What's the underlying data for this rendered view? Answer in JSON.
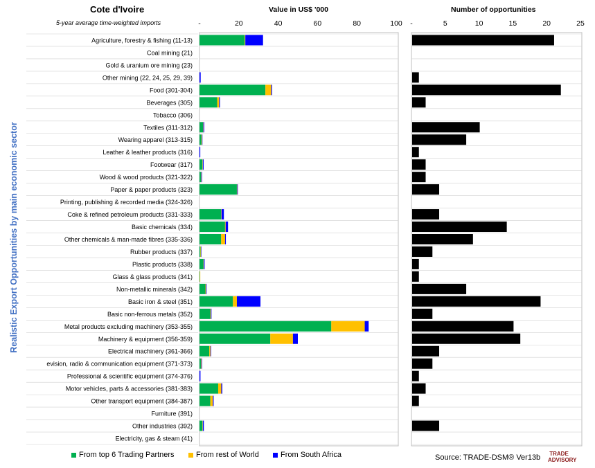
{
  "header": {
    "country": "Cote d'Ivoire",
    "subtitle": "5-year average time-weighted imports",
    "y_axis_title": "Realistic Export Opportunities by main economic sector",
    "left_panel_title": "Value in US$ '000",
    "right_panel_title": "Number of opportunities"
  },
  "legend": {
    "top6": "From top 6 Trading Partners",
    "row": "From rest of World",
    "sa": "From South Africa"
  },
  "footer": {
    "source": "Source: TRADE-DSM®  Ver13b",
    "logo_line1": "TRADE",
    "logo_line2": "ADVISORY"
  },
  "colors": {
    "top6": "#00B050",
    "row": "#FFC000",
    "sa": "#0000FF",
    "count": "#000000",
    "grid": "#BFBFBF"
  },
  "chart_data": [
    {
      "type": "bar",
      "orientation": "horizontal",
      "stacked": true,
      "title": "Value in US$ '000",
      "xlim": [
        0,
        100
      ],
      "x_ticks": [
        "-",
        "20",
        "40",
        "60",
        "80",
        "100"
      ],
      "categories": [
        "Agriculture, forestry & fishing (11-13)",
        "Coal mining (21)",
        "Gold & uranium ore mining (23)",
        "Other mining (22, 24, 25, 29, 39)",
        "Food (301-304)",
        "Beverages (305)",
        "Tobacco (306)",
        "Textiles (311-312)",
        "Wearing apparel (313-315)",
        "Leather & leather products (316)",
        "Footwear (317)",
        "Wood & wood products (321-322)",
        "Paper & paper products (323)",
        "Printing, publishing & recorded media (324-326)",
        "Coke & refined petroleum products (331-333)",
        "Basic chemicals (334)",
        "Other chemicals & man-made fibres (335-336)",
        "Rubber products (337)",
        "Plastic products (338)",
        "Glass & glass products (341)",
        "Non-metallic minerals (342)",
        "Basic iron & steel (351)",
        "Basic non-ferrous metals (352)",
        "Metal products excluding machinery (353-355)",
        "Machinery & equipment (356-359)",
        "Electrical machinery (361-366)",
        "evision, radio & communication equipment (371-373)",
        "Professional & scientific equipment (374-376)",
        "Motor vehicles, parts & accessories (381-383)",
        "Other transport equipment (384-387)",
        "Furniture (391)",
        "Other industries (392)",
        "Electricity, gas & steam (41)"
      ],
      "series": [
        {
          "name": "From top 6 Trading Partners",
          "values": [
            23,
            0,
            0,
            0,
            33.5,
            9,
            0,
            1.8,
            1,
            0,
            1.5,
            0.8,
            19,
            0,
            11,
            13,
            11,
            0.5,
            2,
            0.2,
            3,
            17,
            5.5,
            67,
            36,
            5,
            0.7,
            0,
            9.5,
            5.5,
            0,
            1.5,
            0
          ]
        },
        {
          "name": "From rest of World",
          "values": [
            0.3,
            0,
            0,
            0,
            3,
            1,
            0,
            0.2,
            0.3,
            0,
            0.2,
            0.2,
            0.2,
            0,
            0.2,
            0.3,
            2,
            0.3,
            0.2,
            0.2,
            0.3,
            2,
            0.3,
            17,
            11.5,
            0.6,
            0.3,
            0,
            1.6,
            1.3,
            0,
            0.2,
            0
          ]
        },
        {
          "name": "From South Africa",
          "values": [
            9,
            0,
            0,
            0.6,
            0.4,
            0.4,
            0,
            0.4,
            0.2,
            0.4,
            0.4,
            0.3,
            0.3,
            0,
            1.2,
            1.2,
            0.4,
            0.2,
            0.4,
            0,
            0.3,
            12,
            0.3,
            2,
            2.5,
            0.3,
            0.3,
            0.5,
            0.5,
            0.4,
            0,
            0.5,
            0
          ]
        }
      ]
    },
    {
      "type": "bar",
      "orientation": "horizontal",
      "title": "Number of opportunities",
      "xlim": [
        0,
        25
      ],
      "x_ticks": [
        "-",
        "5",
        "10",
        "15",
        "20",
        "25"
      ],
      "values": [
        21,
        0,
        0,
        1,
        22,
        2,
        0,
        10,
        8,
        1,
        2,
        2,
        4,
        0,
        4,
        14,
        9,
        3,
        1,
        1,
        8,
        19,
        3,
        15,
        16,
        4,
        3,
        1,
        2,
        1,
        0,
        4,
        0
      ]
    }
  ]
}
